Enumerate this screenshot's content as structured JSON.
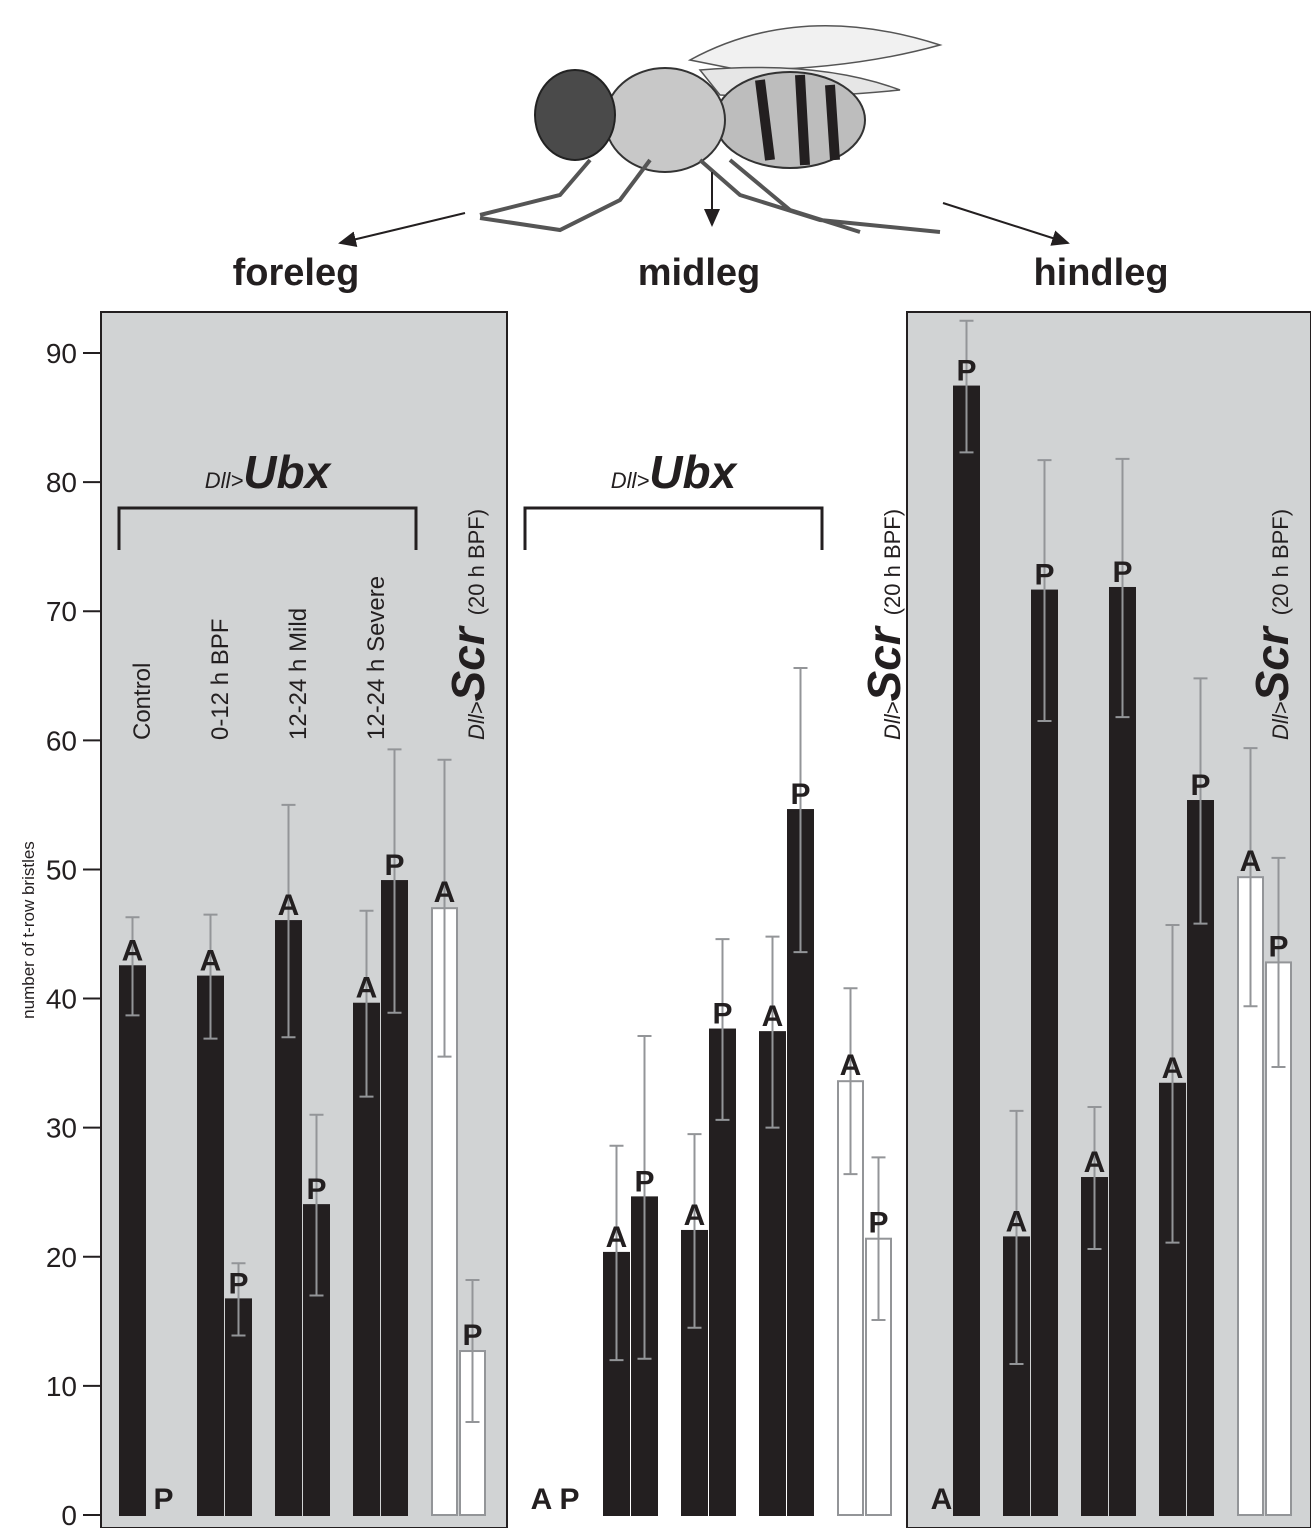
{
  "chart_data": {
    "type": "grouped-bar",
    "y_label": "number of t-row bristles",
    "ylim": [
      0,
      90
    ],
    "yticks": [
      0,
      10,
      20,
      30,
      40,
      50,
      60,
      70,
      80,
      90
    ],
    "panel_color": "#d1d3d4",
    "error_color": "#939598",
    "panels": [
      {
        "name": "foreleg",
        "shaded": true,
        "ubx": {
          "prefix": "Dll>",
          "gene": "Ubx"
        },
        "scr": {
          "prefix": "Dll>",
          "gene": "Scr",
          "suffix": "(20 h BPF)"
        },
        "groups": [
          {
            "label": "Control",
            "color": "#231f20",
            "bars": [
              {
                "label": "A",
                "value": 42.5,
                "error": 3.8
              },
              {
                "label": "P",
                "value": 0,
                "error": 0
              }
            ]
          },
          {
            "label": "0-12 h BPF",
            "color": "#231f20",
            "bars": [
              {
                "label": "A",
                "value": 41.7,
                "error": 4.8
              },
              {
                "label": "P",
                "value": 16.7,
                "error": 2.8
              }
            ]
          },
          {
            "label": "12-24 h Mild",
            "color": "#231f20",
            "bars": [
              {
                "label": "A",
                "value": 46,
                "error": 9
              },
              {
                "label": "P",
                "value": 24,
                "error": 7
              }
            ]
          },
          {
            "label": "12-24 h Severe",
            "color": "#231f20",
            "bars": [
              {
                "label": "A",
                "value": 39.6,
                "error": 7.2
              },
              {
                "label": "P",
                "value": 49.1,
                "error": 10.2
              }
            ]
          },
          {
            "color": "#ffffff",
            "bars": [
              {
                "label": "A",
                "value": 47,
                "error": 11.5
              },
              {
                "label": "P",
                "value": 12.7,
                "error": 5.5
              }
            ]
          }
        ]
      },
      {
        "name": "midleg",
        "shaded": false,
        "ubx": {
          "prefix": "Dll>",
          "gene": "Ubx"
        },
        "scr": {
          "prefix": "Dll>",
          "gene": "Scr",
          "suffix": "(20 h BPF)"
        },
        "groups": [
          {
            "color": "#231f20",
            "bars": [
              {
                "label": "A",
                "value": 0,
                "error": 0
              },
              {
                "label": "P",
                "value": 0,
                "error": 0
              }
            ]
          },
          {
            "color": "#231f20",
            "bars": [
              {
                "label": "A",
                "value": 20.3,
                "error": 8.3
              },
              {
                "label": "P",
                "value": 24.6,
                "error": 12.5
              }
            ]
          },
          {
            "color": "#231f20",
            "bars": [
              {
                "label": "A",
                "value": 22,
                "error": 7.5
              },
              {
                "label": "P",
                "value": 37.6,
                "error": 7
              }
            ]
          },
          {
            "color": "#231f20",
            "bars": [
              {
                "label": "A",
                "value": 37.4,
                "error": 7.4
              },
              {
                "label": "P",
                "value": 54.6,
                "error": 11
              }
            ]
          },
          {
            "color": "#ffffff",
            "bars": [
              {
                "label": "A",
                "value": 33.6,
                "error": 7.2
              },
              {
                "label": "P",
                "value": 21.4,
                "error": 6.3
              }
            ]
          }
        ]
      },
      {
        "name": "hindleg",
        "shaded": true,
        "scr": {
          "prefix": "Dll>",
          "gene": "Scr",
          "suffix": "(20 h BPF)"
        },
        "groups": [
          {
            "color": "#231f20",
            "bars": [
              {
                "label": "A",
                "value": 0,
                "error": 0
              },
              {
                "label": "P",
                "value": 87.4,
                "error": 5.1
              }
            ]
          },
          {
            "color": "#231f20",
            "bars": [
              {
                "label": "A",
                "value": 21.5,
                "error": 9.8
              },
              {
                "label": "P",
                "value": 71.6,
                "error": 10.1
              }
            ]
          },
          {
            "color": "#231f20",
            "bars": [
              {
                "label": "A",
                "value": 26.1,
                "error": 5.5
              },
              {
                "label": "P",
                "value": 71.8,
                "error": 10
              }
            ]
          },
          {
            "color": "#231f20",
            "bars": [
              {
                "label": "A",
                "value": 33.4,
                "error": 12.3
              },
              {
                "label": "P",
                "value": 55.3,
                "error": 9.5
              }
            ]
          },
          {
            "color": "#ffffff",
            "bars": [
              {
                "label": "A",
                "value": 49.4,
                "error": 10
              },
              {
                "label": "P",
                "value": 42.8,
                "error": 8.1
              }
            ]
          }
        ]
      }
    ]
  }
}
